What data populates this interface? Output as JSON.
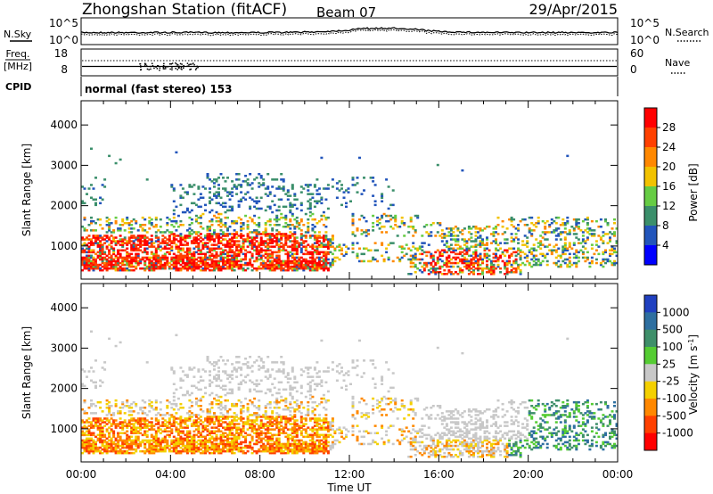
{
  "header": {
    "station": "Zhongshan Station (fitACF)",
    "beam": "Beam 07",
    "date": "29/Apr/2015"
  },
  "noise_panel": {
    "left_label": "N.Sky",
    "right_label": "N.Search",
    "left_ticks": [
      "10^5",
      "10^0"
    ],
    "right_ticks": [
      "10^5",
      "10^0"
    ]
  },
  "freq_panel": {
    "left_label_1": "Freq.",
    "left_label_2": "[MHz]",
    "right_label": "Nave",
    "left_ticks": [
      "18",
      "8"
    ],
    "right_ticks": [
      "60",
      "0"
    ]
  },
  "cpid_panel": {
    "label": "CPID",
    "mode_text": "normal (fast stereo) 153"
  },
  "colors": {
    "power": [
      "#0000ff",
      "#2255bb",
      "#3b8f6b",
      "#66cc44",
      "#f2c200",
      "#ff8800",
      "#ff4000",
      "#ff0000"
    ],
    "velocity": [
      "#2040c0",
      "#2e6fa0",
      "#3f8f6a",
      "#55cc33",
      "#c8c8c8",
      "#f4d000",
      "#ff8800",
      "#ff4000",
      "#ff0000"
    ]
  },
  "chart_data": [
    {
      "type": "heatmap",
      "quantity": "Power",
      "ylabel": "Slant Range [km]",
      "yticks": [
        "1000",
        "2000",
        "3000",
        "4000"
      ],
      "xticks": [
        "00:00",
        "04:00",
        "08:00",
        "12:00",
        "16:00",
        "20:00",
        "00:00"
      ],
      "xlim": [
        "00:00",
        "24:00"
      ],
      "ylim": [
        180,
        4600
      ],
      "colorbar_label": "Power [dB]",
      "colorbar_ticks": [
        "4",
        "8",
        "12",
        "16",
        "20",
        "24",
        "28"
      ],
      "colorbar_range": [
        0,
        32
      ]
    },
    {
      "type": "heatmap",
      "quantity": "Velocity",
      "ylabel": "Slant Range [km]",
      "yticks": [
        "1000",
        "2000",
        "3000",
        "4000"
      ],
      "xticks": [
        "00:00",
        "04:00",
        "08:00",
        "12:00",
        "16:00",
        "20:00",
        "00:00"
      ],
      "xlim": [
        "00:00",
        "24:00"
      ],
      "ylim": [
        180,
        4600
      ],
      "xlabel": "Time UT",
      "colorbar_label": "Velocity [m s^-1]",
      "colorbar_ticks": [
        "1000",
        "500",
        "100",
        "25",
        "-25",
        "-100",
        "-500",
        "-1000"
      ]
    }
  ]
}
